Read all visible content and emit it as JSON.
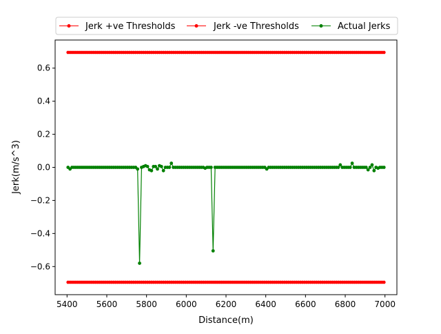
{
  "chart_data": {
    "type": "line",
    "title": "",
    "xlabel": "Distance(m)",
    "ylabel": "Jerk(m/s^3)",
    "xlim": [
      5340,
      7060
    ],
    "ylim": [
      -0.77,
      0.77
    ],
    "xticks": [
      5400,
      5600,
      5800,
      6000,
      6200,
      6400,
      6600,
      6800,
      7000
    ],
    "yticks": [
      -0.6,
      -0.4,
      -0.2,
      0.0,
      0.2,
      0.4,
      0.6
    ],
    "ytick_labels": [
      "−0.6",
      "−0.4",
      "−0.2",
      "0.0",
      "0.2",
      "0.4",
      "0.6"
    ],
    "grid": false,
    "legend_position": "top",
    "series": [
      {
        "name": "Jerk +ve Thresholds",
        "color": "#ff0000",
        "x_range": [
          5405,
          7000
        ],
        "step": 10,
        "constant": 0.695
      },
      {
        "name": "Jerk -ve Thresholds",
        "color": "#ff0000",
        "x_range": [
          5405,
          7000
        ],
        "step": 10,
        "constant": -0.695
      },
      {
        "name": "Actual Jerks",
        "color": "#008000",
        "x_range": [
          5405,
          7000
        ],
        "step": 10,
        "baseline": 0.0,
        "points": [
          {
            "x": 5405,
            "y": 0.0
          },
          {
            "x": 5415,
            "y": -0.01
          },
          {
            "x": 5755,
            "y": -0.01
          },
          {
            "x": 5765,
            "y": -0.58
          },
          {
            "x": 5775,
            "y": 0.0
          },
          {
            "x": 5785,
            "y": 0.005
          },
          {
            "x": 5795,
            "y": 0.01
          },
          {
            "x": 5805,
            "y": 0.005
          },
          {
            "x": 5815,
            "y": -0.015
          },
          {
            "x": 5825,
            "y": -0.02
          },
          {
            "x": 5835,
            "y": 0.005
          },
          {
            "x": 5845,
            "y": 0.005
          },
          {
            "x": 5855,
            "y": -0.01
          },
          {
            "x": 5865,
            "y": 0.01
          },
          {
            "x": 5875,
            "y": 0.005
          },
          {
            "x": 5885,
            "y": -0.02
          },
          {
            "x": 5895,
            "y": 0.0
          },
          {
            "x": 5925,
            "y": 0.025
          },
          {
            "x": 6095,
            "y": -0.005
          },
          {
            "x": 6125,
            "y": 0.0
          },
          {
            "x": 6135,
            "y": -0.505
          },
          {
            "x": 6145,
            "y": 0.0
          },
          {
            "x": 6405,
            "y": -0.01
          },
          {
            "x": 6775,
            "y": 0.015
          },
          {
            "x": 6835,
            "y": 0.025
          },
          {
            "x": 6915,
            "y": -0.015
          },
          {
            "x": 6935,
            "y": 0.015
          },
          {
            "x": 6945,
            "y": -0.02
          },
          {
            "x": 6965,
            "y": -0.005
          },
          {
            "x": 6985,
            "y": 0.0
          },
          {
            "x": 6995,
            "y": 0.0
          }
        ]
      }
    ]
  }
}
